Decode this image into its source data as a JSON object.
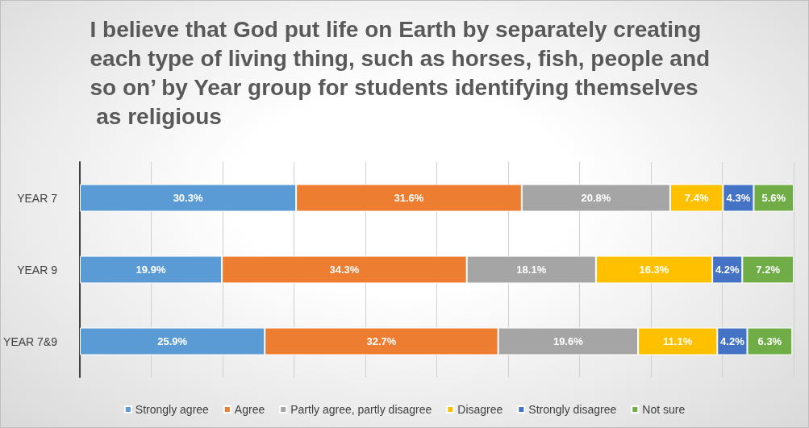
{
  "chart_data": {
    "type": "bar",
    "orientation": "horizontal",
    "stacked": true,
    "title": "I believe that God put life on Earth by separately creating each type of living thing, such as horses, fish, people and so on’ by Year group for students identifying themselves as religious",
    "categories": [
      "YEAR 7",
      "YEAR 9",
      "YEAR 7&9"
    ],
    "series": [
      {
        "name": "Strongly agree",
        "color": "#5b9bd5",
        "values": [
          30.3,
          19.9,
          25.9
        ],
        "value_labels": [
          "30.3%",
          "19.9%",
          "25.9%"
        ]
      },
      {
        "name": "Agree",
        "color": "#ed7d31",
        "values": [
          31.6,
          34.3,
          32.7
        ],
        "value_labels": [
          "31.6%",
          "34.3%",
          "32.7%"
        ]
      },
      {
        "name": "Partly agree, partly disagree",
        "color": "#a5a5a5",
        "values": [
          20.8,
          18.1,
          19.6
        ],
        "value_labels": [
          "20.8%",
          "18.1%",
          "19.6%"
        ]
      },
      {
        "name": "Disagree",
        "color": "#ffc000",
        "values": [
          7.4,
          16.3,
          11.1
        ],
        "value_labels": [
          "7.4%",
          "16.3%",
          "11.1%"
        ]
      },
      {
        "name": "Strongly disagree",
        "color": "#4472c4",
        "values": [
          4.3,
          4.2,
          4.2
        ],
        "value_labels": [
          "4.3%",
          "4.2%",
          "4.2%"
        ]
      },
      {
        "name": "Not sure",
        "color": "#70ad47",
        "values": [
          5.6,
          7.2,
          6.3
        ],
        "value_labels": [
          "5.6%",
          "7.2%",
          "6.3%"
        ]
      }
    ],
    "xlim": [
      0,
      100
    ],
    "xticks": [
      {
        "value": 0,
        "label": null
      },
      {
        "value": 10,
        "label": null
      },
      {
        "value": 20,
        "label": null
      },
      {
        "value": 30,
        "label": null
      },
      {
        "value": 40,
        "label": null
      },
      {
        "value": 50,
        "label": null
      },
      {
        "value": 60,
        "label": null
      },
      {
        "value": 70,
        "label": null
      },
      {
        "value": 80,
        "label": null
      },
      {
        "value": 90,
        "label": null
      },
      {
        "value": 100,
        "label": null
      }
    ],
    "grid": "x",
    "legend": "bottom",
    "tick_labels": "y"
  }
}
